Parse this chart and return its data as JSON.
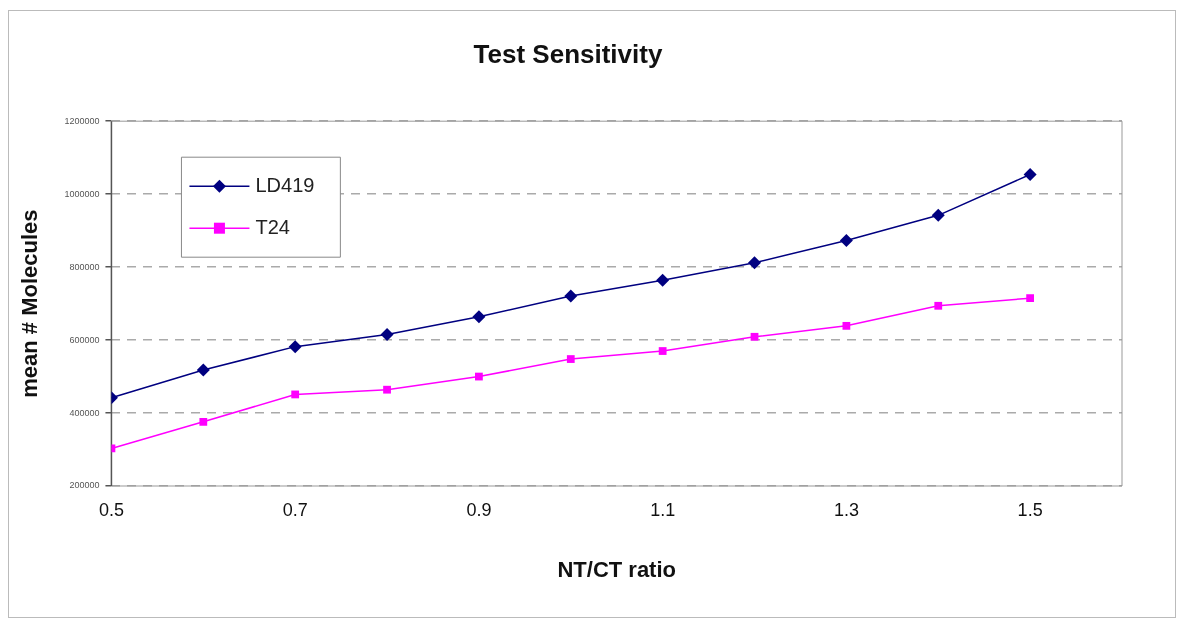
{
  "chart_data": {
    "type": "line",
    "title": "Test Sensitivity",
    "xlabel": "NT/CT ratio",
    "ylabel": "mean # Molecules",
    "x": [
      0.5,
      0.6,
      0.7,
      0.8,
      0.9,
      1.0,
      1.1,
      1.2,
      1.3,
      1.4,
      1.5
    ],
    "series": [
      {
        "name": "LD419",
        "color": "#000080",
        "marker": "diamond",
        "values": [
          442000,
          518000,
          582000,
          615000,
          664000,
          721000,
          764000,
          812000,
          873000,
          942000,
          1054000
        ]
      },
      {
        "name": "T24",
        "color": "#ff00ff",
        "marker": "square",
        "values": [
          303000,
          376000,
          451000,
          464000,
          500000,
          548000,
          570000,
          609000,
          639000,
          694000,
          715000
        ]
      }
    ],
    "xlim": [
      0.5,
      1.6
    ],
    "xticks": [
      0.5,
      0.7,
      0.9,
      1.1,
      1.3,
      1.5
    ],
    "ylim": [
      200000,
      1200000
    ],
    "yticks": [
      200000,
      400000,
      600000,
      800000,
      1000000,
      1200000
    ],
    "grid": "y",
    "line_style": "solid",
    "legend": "top left"
  }
}
